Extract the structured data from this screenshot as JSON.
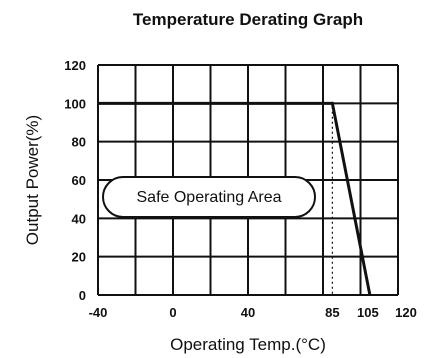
{
  "chart_data": {
    "type": "line",
    "title": "Temperature Derating Graph",
    "xlabel": "Operating Temp.(°C)",
    "ylabel": "Output Power(%)",
    "x_ticks": [
      "-40",
      "0",
      "40",
      "85",
      "105",
      "120"
    ],
    "x_tick_values": [
      -40,
      0,
      40,
      85,
      105,
      120
    ],
    "y_ticks": [
      "0",
      "20",
      "40",
      "60",
      "80",
      "100",
      "120"
    ],
    "y_tick_values": [
      0,
      20,
      40,
      60,
      80,
      100,
      120
    ],
    "xlim": [
      -40,
      120
    ],
    "ylim": [
      0,
      120
    ],
    "grid": true,
    "series": [
      {
        "x": [
          -40,
          85,
          105
        ],
        "y": [
          100,
          100,
          0
        ]
      }
    ],
    "reference_line_x": 85,
    "annotation": "Safe Operating Area"
  }
}
